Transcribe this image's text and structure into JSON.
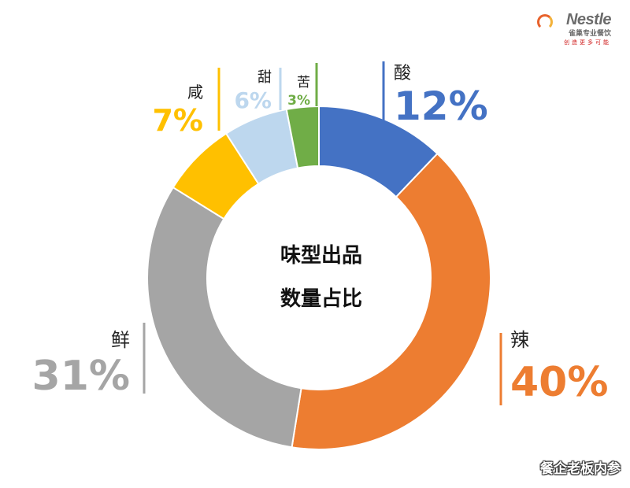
{
  "logo": {
    "brand": "Nestle",
    "line1": "雀巢专业餐饮",
    "line2": "创造更多可能"
  },
  "watermark": "餐企老板内参",
  "chart_data": {
    "type": "pie",
    "donut": true,
    "center_text": [
      "味型出品",
      "数量占比"
    ],
    "slices": [
      {
        "label": "酸",
        "value": 12,
        "value_text": "12%",
        "color": "#4472C4"
      },
      {
        "label": "辣",
        "value": 40,
        "value_text": "40%",
        "color": "#ED7D31"
      },
      {
        "label": "鲜",
        "value": 31,
        "value_text": "31%",
        "color": "#A5A5A5"
      },
      {
        "label": "咸",
        "value": 7,
        "value_text": "7%",
        "color": "#FFC000"
      },
      {
        "label": "甜",
        "value": 6,
        "value_text": "6%",
        "color": "#BDD7EE"
      },
      {
        "label": "苦",
        "value": 3,
        "value_text": "3%",
        "color": "#70AD47"
      }
    ]
  }
}
